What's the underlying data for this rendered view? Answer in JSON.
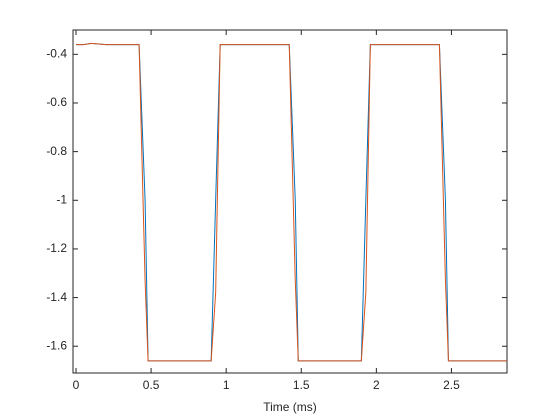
{
  "chart_data": {
    "type": "line",
    "xlabel": "Time (ms)",
    "x": [
      0,
      0.05,
      0.1,
      0.2,
      0.3,
      0.42,
      0.46,
      0.48,
      0.6,
      0.8,
      0.9,
      0.93,
      0.96,
      1.1,
      1.3,
      1.42,
      1.46,
      1.48,
      1.6,
      1.8,
      1.9,
      1.93,
      1.96,
      2.1,
      2.3,
      2.42,
      2.46,
      2.48,
      2.6,
      2.8,
      2.87
    ],
    "series": [
      {
        "color": "#0072bd",
        "values": [
          -0.36,
          -0.36,
          -0.355,
          -0.36,
          -0.36,
          -0.36,
          -1.0,
          -1.66,
          -1.66,
          -1.66,
          -1.66,
          -1.0,
          -0.36,
          -0.36,
          -0.36,
          -0.36,
          -1.0,
          -1.66,
          -1.66,
          -1.66,
          -1.66,
          -1.0,
          -0.36,
          -0.36,
          -0.36,
          -0.36,
          -1.0,
          -1.66,
          -1.66,
          -1.66,
          -1.66
        ]
      },
      {
        "color": "#d95319",
        "values": [
          -0.36,
          -0.36,
          -0.355,
          -0.36,
          -0.36,
          -0.36,
          -1.33,
          -1.66,
          -1.66,
          -1.66,
          -1.66,
          -1.38,
          -0.36,
          -0.36,
          -0.36,
          -0.36,
          -1.33,
          -1.66,
          -1.66,
          -1.66,
          -1.66,
          -1.38,
          -0.36,
          -0.36,
          -0.36,
          -0.36,
          -1.33,
          -1.66,
          -1.66,
          -1.66,
          -1.66
        ]
      }
    ],
    "xlim": [
      -0.02,
      2.87
    ],
    "ylim": [
      -1.71,
      -0.3
    ],
    "xticks": [
      0,
      0.5,
      1,
      1.5,
      2,
      2.5
    ],
    "yticks": [
      -1.6,
      -1.4,
      -1.2,
      -1,
      -0.8,
      -0.6,
      -0.4
    ]
  }
}
